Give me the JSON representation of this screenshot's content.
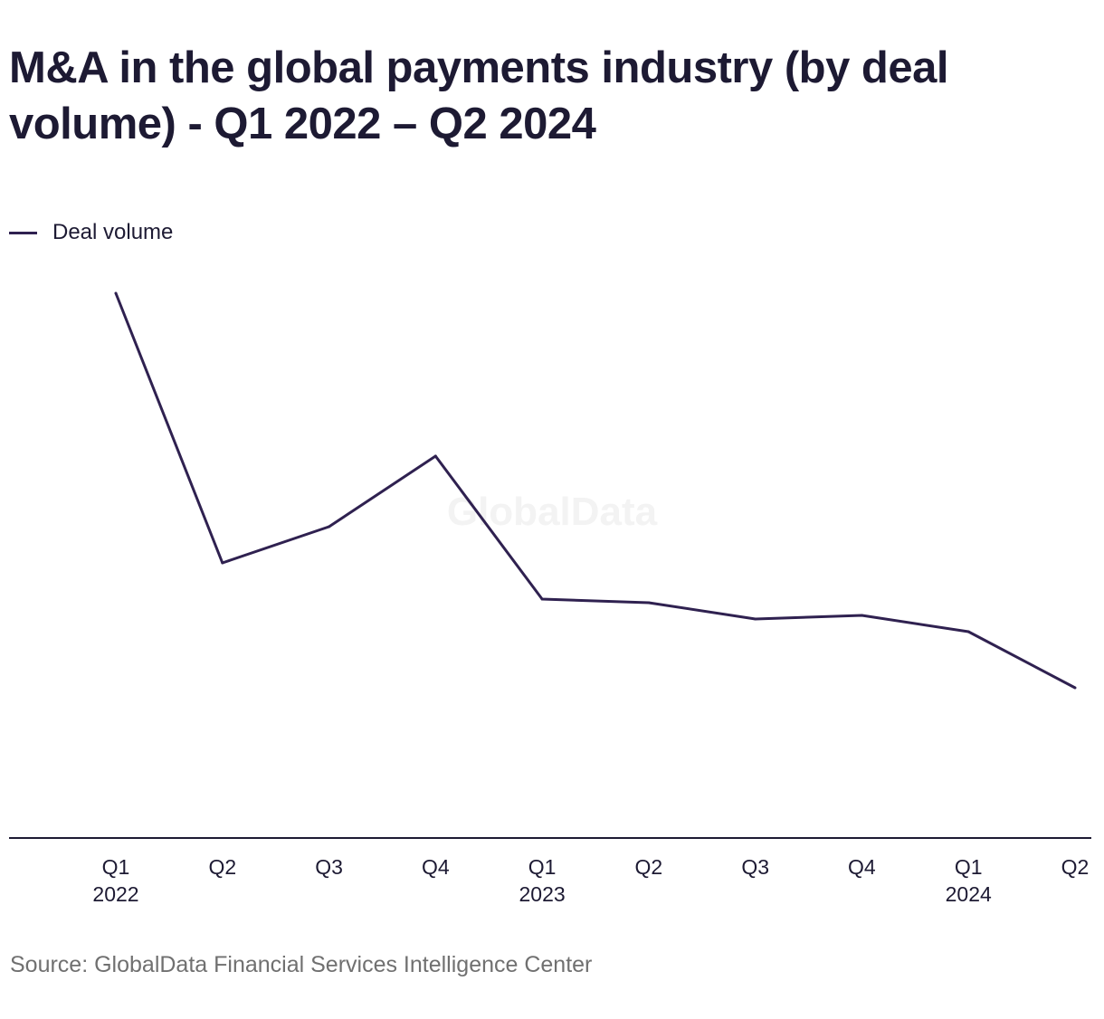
{
  "page": {
    "title": "M&A in the global payments industry (by deal volume) - Q1 2022 – Q2 2024",
    "source": "Source: GlobalData Financial Services Intelligence Center",
    "watermark": "GlobalData"
  },
  "colors": {
    "line": "#2f2150",
    "text": "#1d1a33",
    "axis": "#1d1a33",
    "source_text": "#707070"
  },
  "chart_data": {
    "type": "line",
    "title": "M&A in the global payments industry (by deal volume) - Q1 2022 – Q2 2024",
    "xlabel": "",
    "ylabel": "",
    "categories": [
      "Q1 2022",
      "Q2 2022",
      "Q3 2022",
      "Q4 2022",
      "Q1 2023",
      "Q2 2023",
      "Q3 2023",
      "Q4 2023",
      "Q1 2024",
      "Q2 2024"
    ],
    "tick_labels": [
      {
        "line1": "Q1",
        "line2": "2022"
      },
      {
        "line1": "Q2",
        "line2": ""
      },
      {
        "line1": "Q3",
        "line2": ""
      },
      {
        "line1": "Q4",
        "line2": ""
      },
      {
        "line1": "Q1",
        "line2": "2023"
      },
      {
        "line1": "Q2",
        "line2": ""
      },
      {
        "line1": "Q3",
        "line2": ""
      },
      {
        "line1": "Q4",
        "line2": ""
      },
      {
        "line1": "Q1",
        "line2": "2024"
      },
      {
        "line1": "Q2",
        "line2": ""
      }
    ],
    "series": [
      {
        "name": "Deal volume",
        "values": [
          301,
          152,
          172,
          211,
          132,
          130,
          121,
          123,
          114,
          83
        ]
      }
    ],
    "ylim": [
      0,
      300
    ],
    "grid": false,
    "legend": "top-left",
    "y_axis_labels_shown": false
  }
}
